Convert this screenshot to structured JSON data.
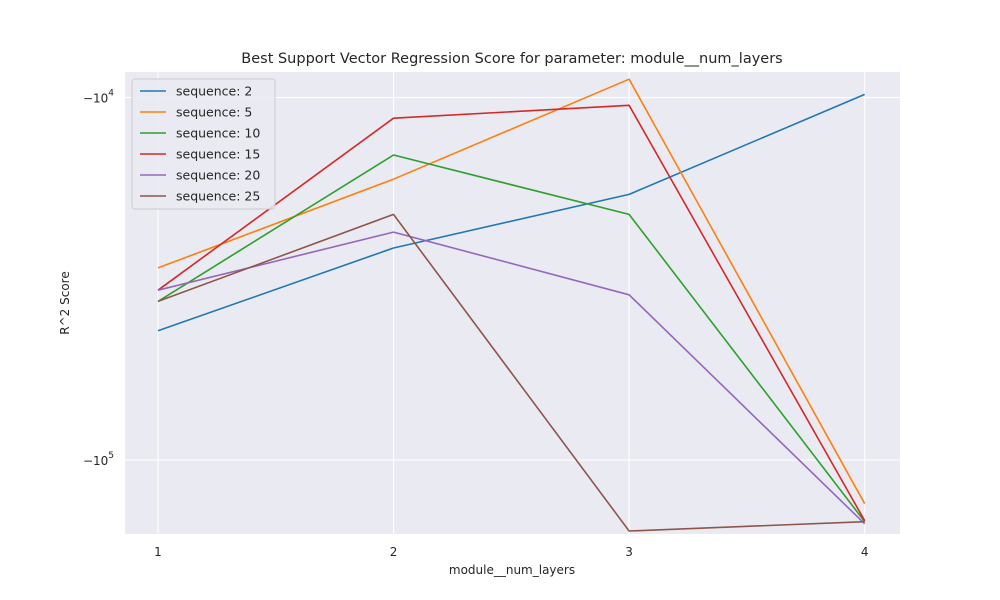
{
  "chart_data": {
    "type": "line",
    "title": "Best Support Vector Regression Score for parameter: module__num_layers",
    "xlabel": "module__num_layers",
    "ylabel": "R^2 Score",
    "x": [
      1,
      2,
      3,
      4
    ],
    "yscale": "symlog",
    "ylim": [
      -160000,
      -8500
    ],
    "xlim": [
      0.86,
      4.15
    ],
    "ytick_labels": [
      {
        "value": -10000,
        "base": "−10",
        "exp": "4"
      },
      {
        "value": -100000,
        "base": "−10",
        "exp": "5"
      }
    ],
    "grid": true,
    "legend_position": "top-left",
    "series": [
      {
        "name": "sequence: 2",
        "color": "#1f77b4",
        "values": [
          -44000,
          -26000,
          -18500,
          -9800
        ]
      },
      {
        "name": "sequence: 5",
        "color": "#ff7f0e",
        "values": [
          -29500,
          -16800,
          -8900,
          -132000
        ]
      },
      {
        "name": "sequence: 10",
        "color": "#2ca02c",
        "values": [
          -36500,
          -14400,
          -21000,
          -148000
        ]
      },
      {
        "name": "sequence: 15",
        "color": "#d62728",
        "values": [
          -34000,
          -11400,
          -10500,
          -147000
        ]
      },
      {
        "name": "sequence: 20",
        "color": "#9467bd",
        "values": [
          -34000,
          -23500,
          -35000,
          -150000
        ]
      },
      {
        "name": "sequence: 25",
        "color": "#8c564b",
        "values": [
          -36500,
          -21000,
          -157000,
          -148000
        ]
      }
    ]
  }
}
